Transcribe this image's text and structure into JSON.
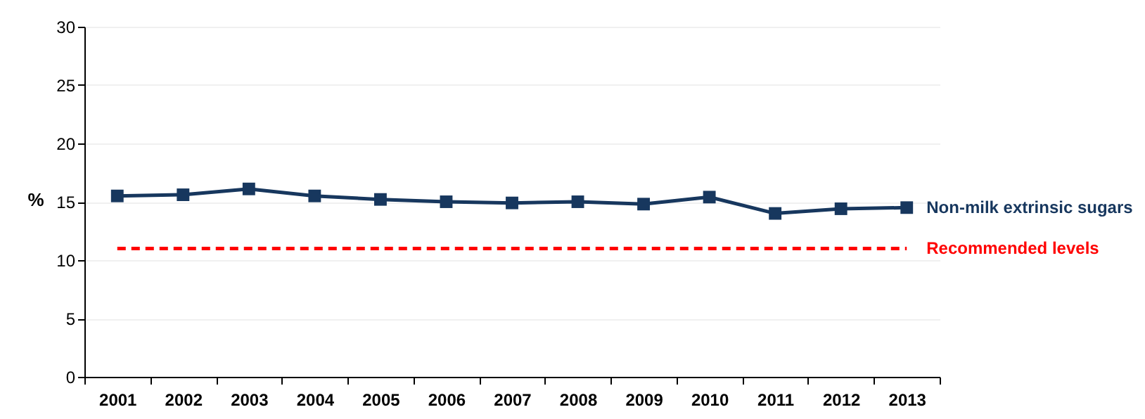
{
  "chart_data": {
    "type": "line",
    "ylabel": "%",
    "categories": [
      "2001",
      "2002",
      "2003",
      "2004",
      "2005",
      "2006",
      "2007",
      "2008",
      "2009",
      "2010",
      "2011",
      "2012",
      "2013"
    ],
    "series": [
      {
        "name": "Non-milk extrinsic sugars",
        "color": "#17375e",
        "values": [
          15.5,
          15.6,
          16.1,
          15.5,
          15.2,
          15.0,
          14.9,
          15.0,
          14.8,
          15.4,
          14.0,
          14.4,
          14.5
        ]
      }
    ],
    "ref_lines": [
      {
        "axis": "y",
        "value": 11,
        "label": "Recommended levels",
        "color": "#ff0000",
        "line_style": "dashed"
      }
    ],
    "ylim": [
      0,
      30
    ],
    "yticks": [
      0,
      5,
      10,
      15,
      20,
      25,
      30
    ],
    "grid": "y",
    "marker": "square",
    "line_style": "solid"
  }
}
